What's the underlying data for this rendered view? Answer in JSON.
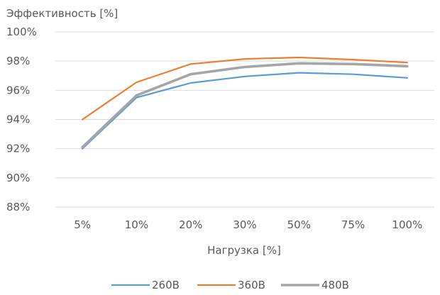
{
  "chart_data": {
    "type": "line",
    "title": "",
    "ylabel": "Эффективность [%]",
    "xlabel": "Нагрузка [%]",
    "categories": [
      "5%",
      "10%",
      "20%",
      "30%",
      "50%",
      "75%",
      "100%"
    ],
    "ylim": [
      88,
      100
    ],
    "yticks": [
      88,
      90,
      92,
      94,
      96,
      98,
      100
    ],
    "ytick_labels": [
      "88%",
      "90%",
      "92%",
      "94%",
      "96%",
      "98%",
      "100%"
    ],
    "grid": true,
    "legend_position": "bottom",
    "series": [
      {
        "name": "260В",
        "color": "#5B9BD5",
        "values": [
          92.0,
          95.5,
          96.5,
          96.95,
          97.2,
          97.1,
          96.85
        ]
      },
      {
        "name": "360В",
        "color": "#ED7D31",
        "values": [
          94.0,
          96.55,
          97.8,
          98.15,
          98.25,
          98.1,
          97.9
        ]
      },
      {
        "name": "480В",
        "color": "#A5A5A5",
        "values": [
          92.1,
          95.65,
          97.1,
          97.6,
          97.85,
          97.8,
          97.65
        ]
      }
    ]
  }
}
